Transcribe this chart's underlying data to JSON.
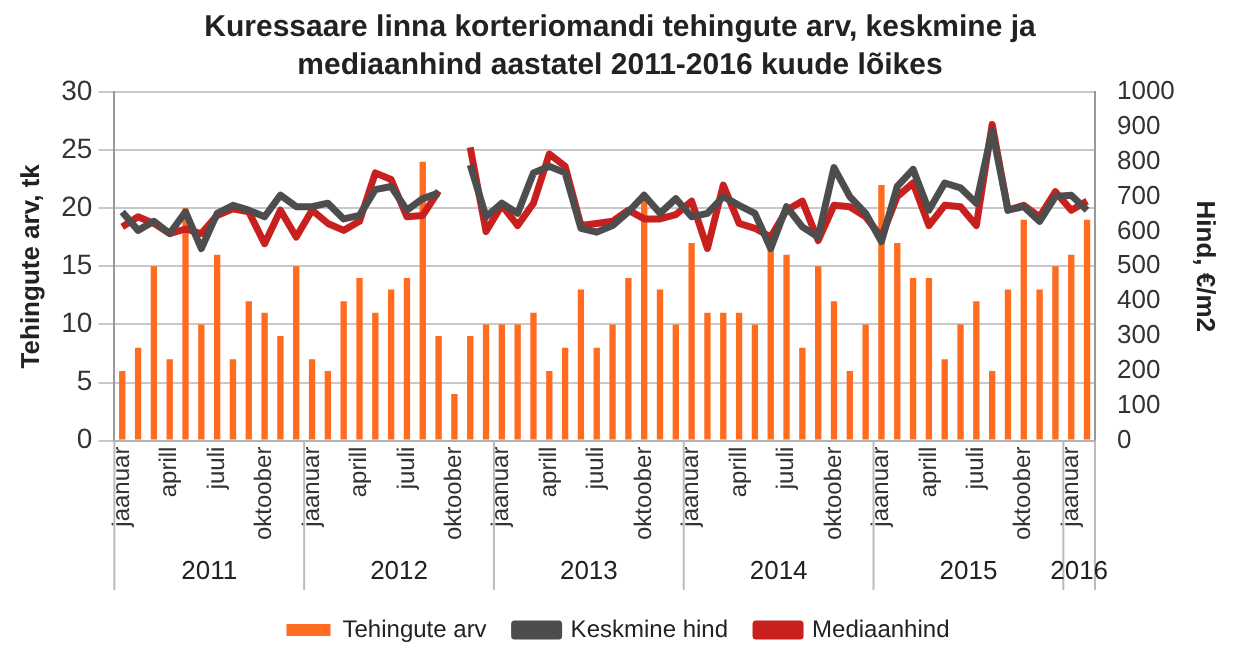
{
  "chart_data": {
    "type": "bar",
    "title": "Kuressaare linna korteriomandi tehingute arv, keskmine ja mediaanhind aastatel 2011-2016 kuude lõikes",
    "categories": [
      "jaanuar",
      null,
      null,
      "aprill",
      null,
      null,
      "juuli",
      null,
      null,
      "oktoober",
      null,
      null,
      "jaanuar",
      null,
      null,
      "aprill",
      null,
      null,
      "juuli",
      null,
      null,
      "oktoober",
      null,
      null,
      "jaanuar",
      null,
      null,
      "aprill",
      null,
      null,
      "juuli",
      null,
      null,
      "oktoober",
      null,
      null,
      "jaanuar",
      null,
      null,
      "aprill",
      null,
      null,
      "juuli",
      null,
      null,
      "oktoober",
      null,
      null,
      "jaanuar",
      null,
      null,
      "aprill",
      null,
      null,
      "juuli",
      null,
      null,
      "oktoober",
      null,
      null,
      "jaanuar",
      null
    ],
    "annotations": [
      "2011",
      "2012",
      "2013",
      "2014",
      "2015",
      "2016"
    ],
    "ylabel": "Tehingute arv, tk",
    "y2label": "Hind, €/m2",
    "ylim": [
      0,
      30
    ],
    "yticks": [
      0,
      5,
      10,
      15,
      20,
      25,
      30
    ],
    "y2lim": [
      0,
      1000
    ],
    "y2ticks": [
      0,
      100,
      200,
      300,
      400,
      500,
      600,
      700,
      800,
      900,
      1000
    ],
    "grid": "y",
    "legend": "bottom",
    "series": [
      {
        "name": "Tehingute arv",
        "color": "#ff6b1f",
        "values": [
          6,
          8,
          15,
          7,
          20,
          10,
          16,
          7,
          12,
          11,
          9,
          15,
          7,
          6,
          12,
          14,
          11,
          13,
          14,
          24,
          9,
          4,
          9,
          10,
          10,
          10,
          11,
          6,
          8,
          13,
          8,
          10,
          14,
          21,
          13,
          10,
          17,
          11,
          11,
          11,
          10,
          17,
          16,
          8,
          15,
          12,
          6,
          10,
          22,
          17,
          14,
          14,
          7,
          10,
          12,
          6,
          13,
          19,
          13,
          15,
          16,
          19
        ]
      },
      {
        "name": "Keskmine hind",
        "type": "line",
        "axis": "y2",
        "color": "#4d4d4d",
        "values": [
          656,
          603,
          629,
          594,
          656,
          551,
          652,
          675,
          661,
          642,
          704,
          671,
          671,
          681,
          636,
          646,
          720,
          729,
          661,
          694,
          710,
          null,
          791,
          642,
          681,
          652,
          768,
          787,
          768,
          609,
          598,
          617,
          656,
          704,
          652,
          694,
          642,
          652,
          700,
          675,
          652,
          551,
          671,
          613,
          584,
          783,
          700,
          652,
          571,
          729,
          778,
          661,
          739,
          725,
          681,
          890,
          661,
          671,
          629,
          700,
          704,
          661
        ]
      },
      {
        "name": "Mediaanhind",
        "type": "line",
        "axis": "y2",
        "color": "#c8201e",
        "values": [
          613,
          642,
          623,
          594,
          607,
          594,
          646,
          665,
          656,
          565,
          661,
          584,
          661,
          623,
          603,
          629,
          768,
          749,
          642,
          646,
          716,
          null,
          841,
          600,
          675,
          617,
          681,
          822,
          787,
          617,
          623,
          629,
          661,
          636,
          636,
          648,
          687,
          551,
          733,
          623,
          609,
          584,
          661,
          687,
          574,
          675,
          671,
          642,
          584,
          700,
          739,
          617,
          675,
          671,
          617,
          907,
          661,
          675,
          642,
          714,
          661,
          687
        ]
      }
    ]
  }
}
